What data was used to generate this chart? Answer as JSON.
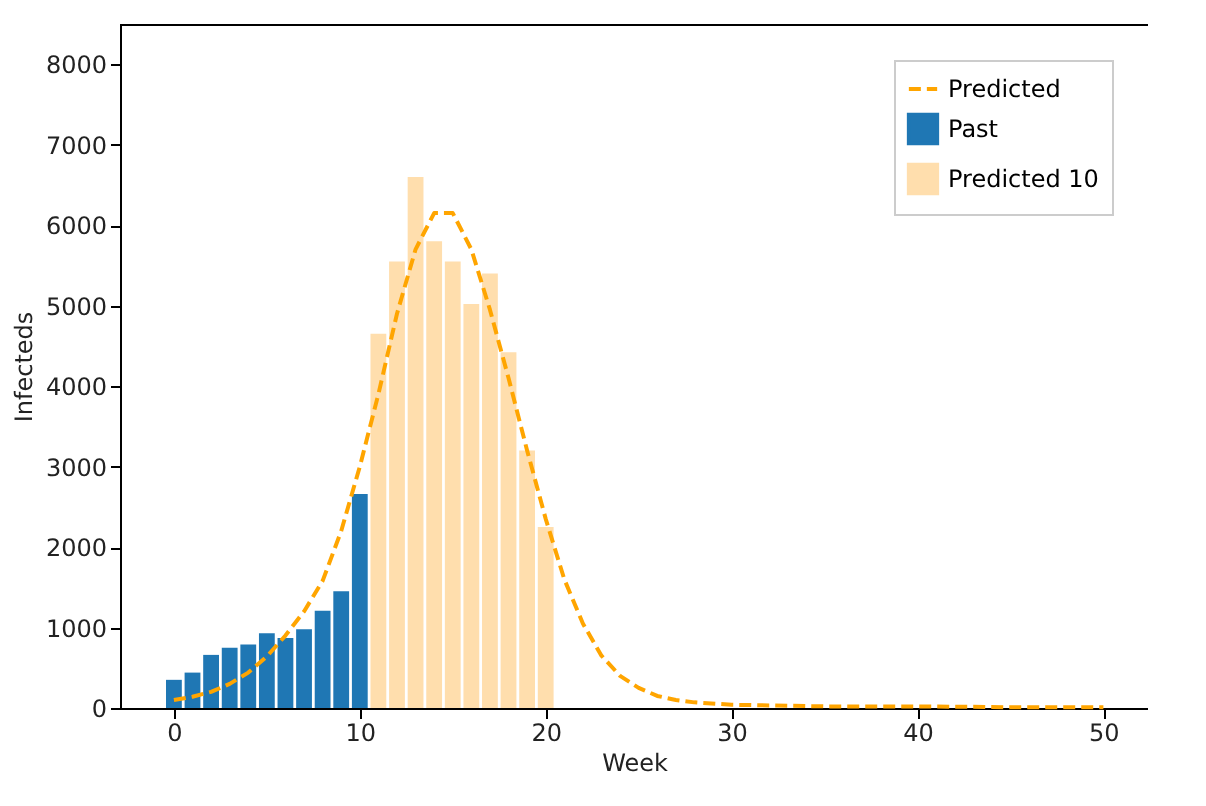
{
  "chart_data": {
    "type": "bar",
    "xlabel": "Week",
    "ylabel": "Infecteds",
    "xlim": [
      -2.9,
      52.4
    ],
    "xticks": [
      0,
      10,
      20,
      30,
      40,
      50
    ],
    "ylim": [
      0,
      8500
    ],
    "yticks": [
      0,
      1000,
      2000,
      3000,
      4000,
      5000,
      6000,
      7000,
      8000
    ],
    "grid": false,
    "legend": "top right",
    "series": [
      {
        "name": "Predicted",
        "type": "line",
        "line_style": "dashed",
        "color": "#ffa500",
        "x": [
          0,
          1,
          2,
          3,
          4,
          5,
          6,
          7,
          8,
          9,
          10,
          11,
          12,
          13,
          14,
          15,
          16,
          17,
          18,
          19,
          20,
          21,
          22,
          23,
          24,
          25,
          26,
          27,
          28,
          30,
          35,
          40,
          45,
          50
        ],
        "values": [
          100,
          140,
          200,
          300,
          440,
          640,
          900,
          1200,
          1580,
          2200,
          3000,
          3900,
          4900,
          5700,
          6150,
          6150,
          5700,
          4950,
          4100,
          3200,
          2350,
          1600,
          1050,
          650,
          400,
          250,
          150,
          100,
          70,
          40,
          20,
          20,
          10,
          10
        ]
      },
      {
        "name": "Past",
        "color": "#1f77b4",
        "x": [
          0,
          1,
          2,
          3,
          4,
          5,
          6,
          7,
          8,
          9,
          10
        ],
        "values": [
          350,
          440,
          660,
          750,
          790,
          930,
          870,
          980,
          1210,
          1450,
          2660
        ]
      },
      {
        "name": "Predicted 10",
        "color": "#ffdead",
        "x": [
          11,
          12,
          13,
          14,
          15,
          16,
          17,
          18,
          19,
          20
        ],
        "values": [
          4650,
          5550,
          6600,
          5800,
          5550,
          5020,
          5400,
          4420,
          3200,
          2250
        ]
      }
    ]
  }
}
